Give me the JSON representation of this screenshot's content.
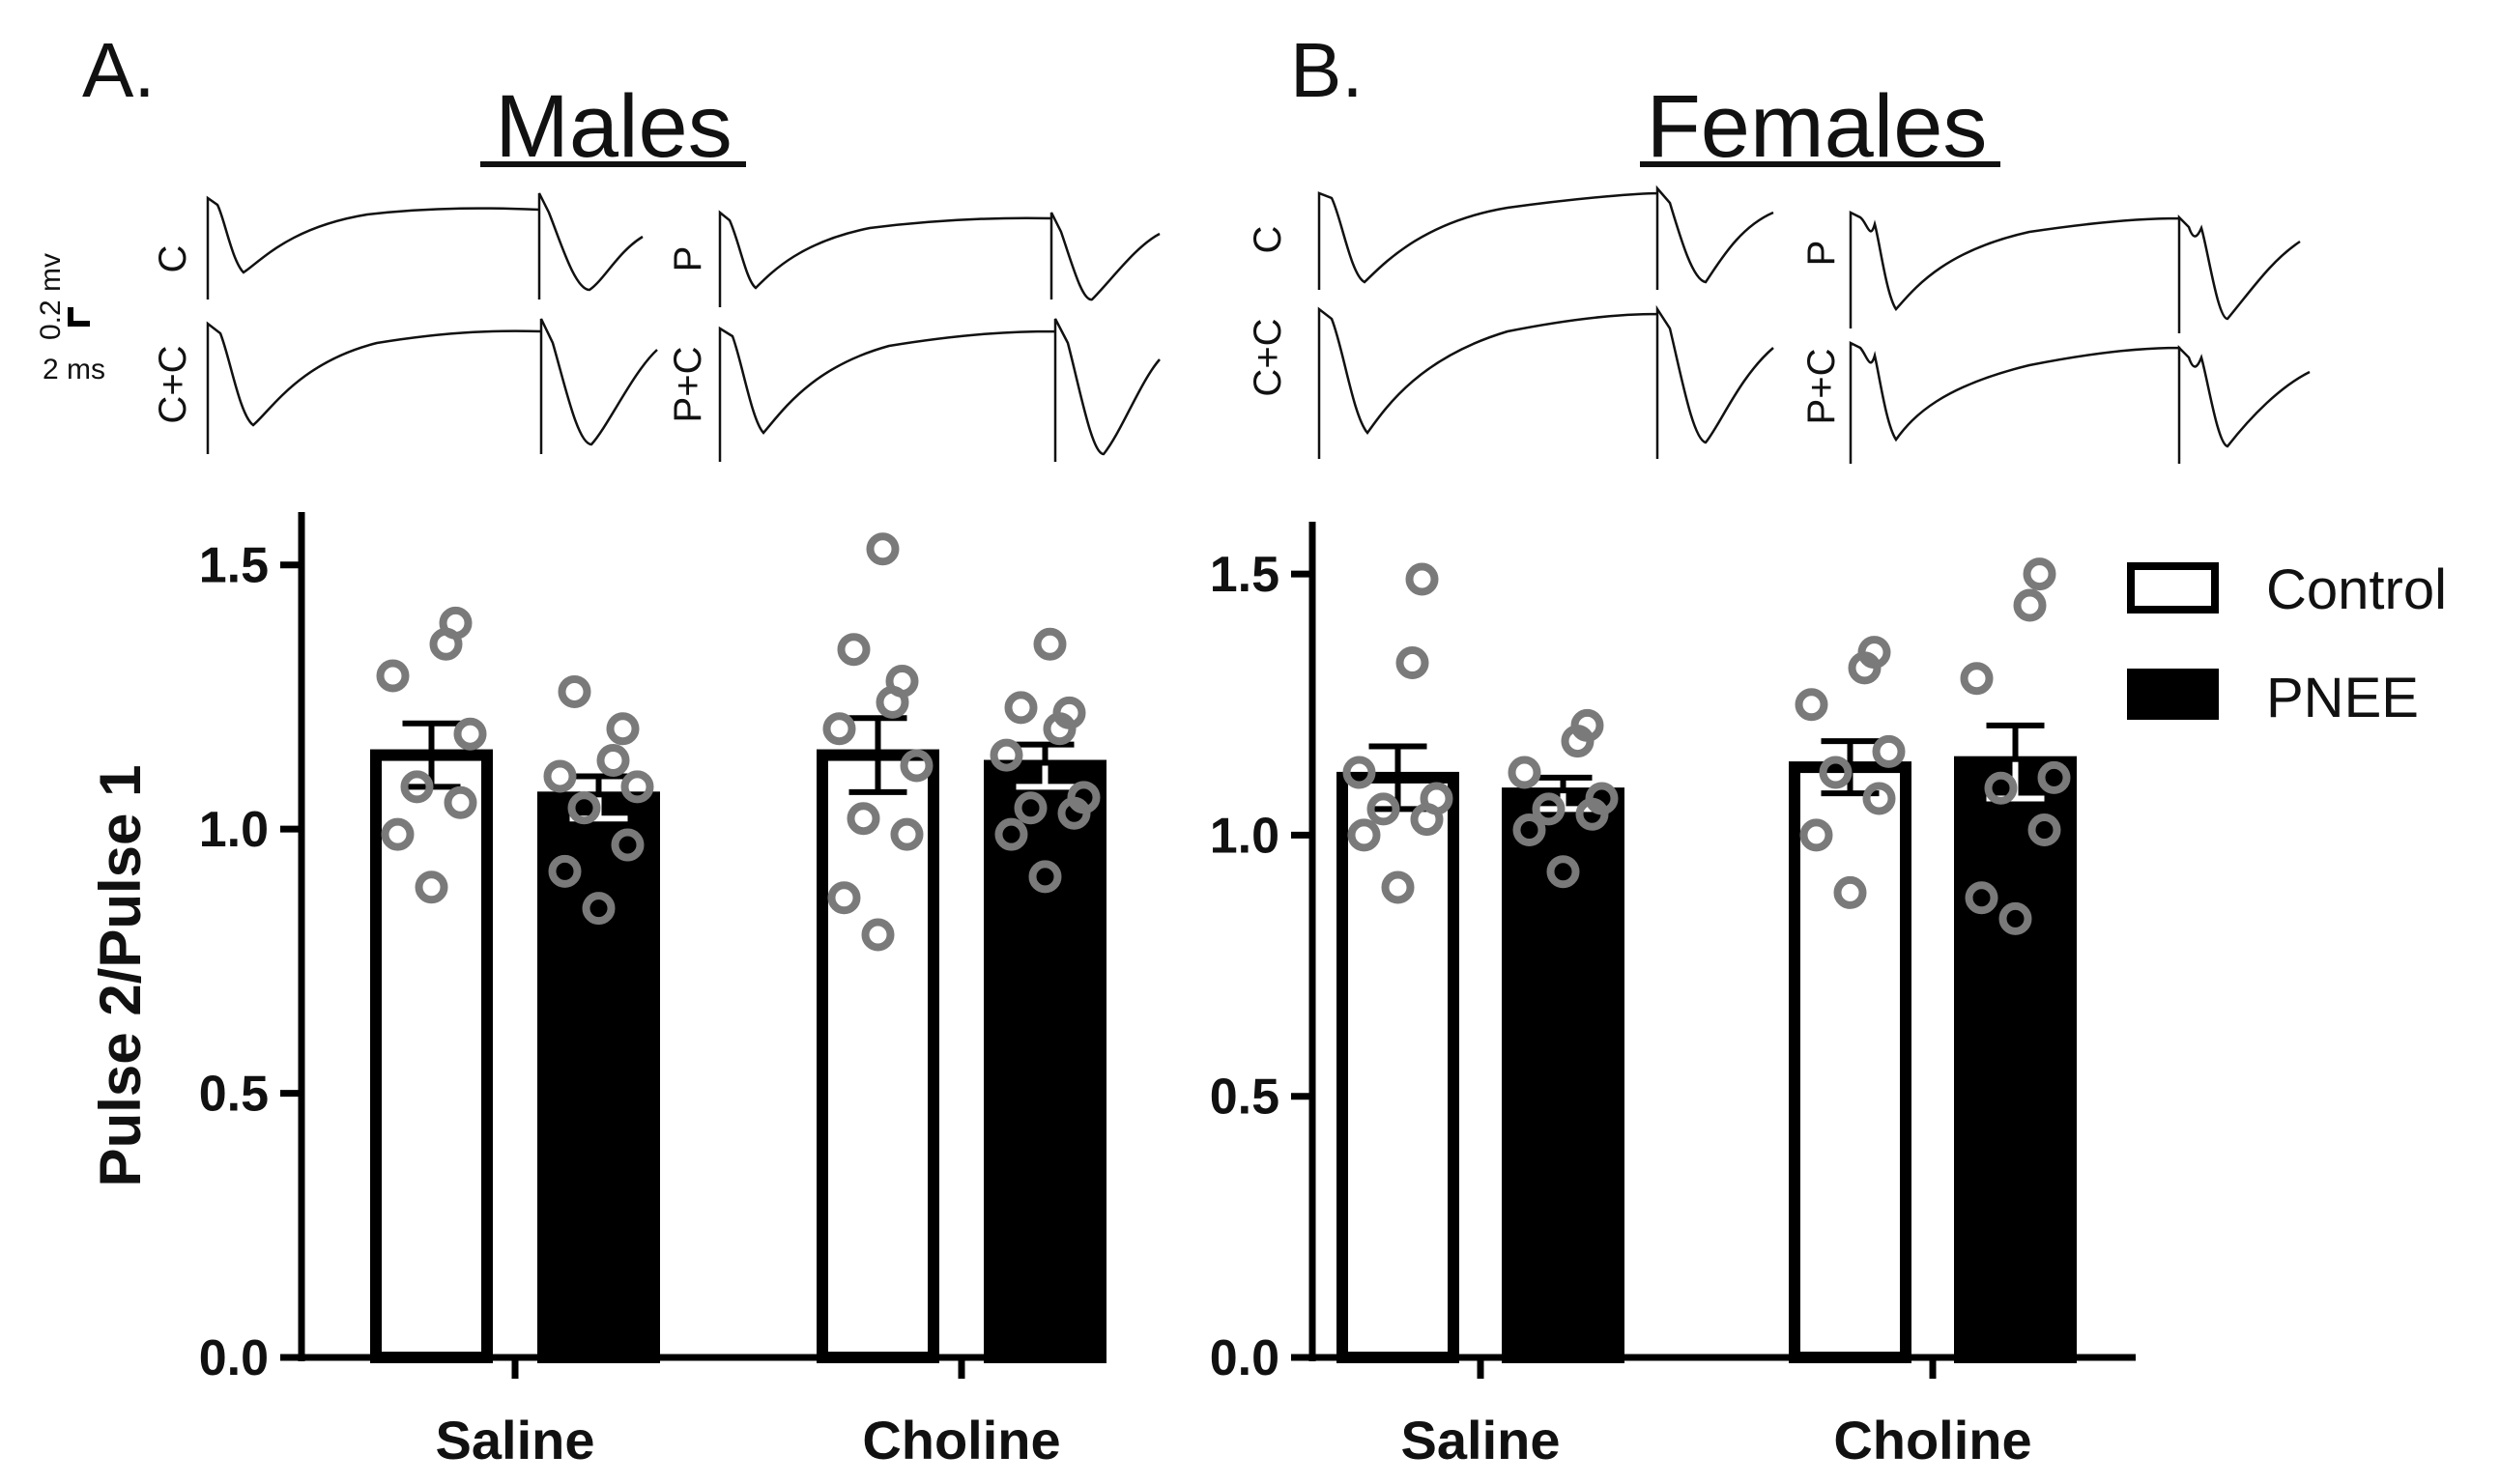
{
  "figure": {
    "panel_a_label": "A.",
    "panel_b_label": "B.",
    "males_title": "Males",
    "females_title": "Females",
    "scale_bar": {
      "voltage_label": "0.2 mv",
      "time_label": "2 ms"
    },
    "trace_labels": {
      "males": [
        "C",
        "P",
        "C+C",
        "P+C"
      ],
      "females": [
        "C",
        "P",
        "C+C",
        "P+C"
      ]
    }
  },
  "legend": {
    "items": [
      {
        "label": "Control",
        "fill": "#ffffff"
      },
      {
        "label": "PNEE",
        "fill": "#000000"
      }
    ]
  },
  "colors": {
    "bar_stroke": "#000000",
    "point": "#7a7a7a",
    "control": "#ffffff",
    "pnee": "#000000"
  },
  "chart_data": [
    {
      "type": "bar",
      "title": "Males",
      "ylabel": "Pulse 2/Pulse 1",
      "xlabel": "",
      "ylim": [
        0,
        1.6
      ],
      "yticks": [
        "0.0",
        "0.5",
        "1.0",
        "1.5"
      ],
      "categories": [
        "Saline",
        "Choline"
      ],
      "series": [
        {
          "name": "Control",
          "values": [
            1.14,
            1.14
          ],
          "sem": [
            0.06,
            0.07
          ],
          "points": [
            [
              0.89,
              0.99,
              1.05,
              1.08,
              1.18,
              1.29,
              1.35,
              1.39
            ],
            [
              0.8,
              0.87,
              0.99,
              1.02,
              1.12,
              1.19,
              1.24,
              1.28,
              1.34,
              1.53
            ]
          ]
        },
        {
          "name": "PNEE",
          "values": [
            1.06,
            1.12
          ],
          "sem": [
            0.04,
            0.04
          ],
          "points": [
            [
              0.85,
              0.92,
              0.97,
              1.04,
              1.08,
              1.1,
              1.13,
              1.19,
              1.26
            ],
            [
              0.91,
              0.99,
              1.03,
              1.04,
              1.06,
              1.14,
              1.19,
              1.22,
              1.23,
              1.35
            ]
          ]
        }
      ]
    },
    {
      "type": "bar",
      "title": "Females",
      "ylabel": "",
      "xlabel": "",
      "ylim": [
        0,
        1.6
      ],
      "yticks": [
        "0.0",
        "0.5",
        "1.0",
        "1.5"
      ],
      "categories": [
        "Saline",
        "Choline"
      ],
      "series": [
        {
          "name": "Control",
          "values": [
            1.11,
            1.13
          ],
          "sem": [
            0.06,
            0.05
          ],
          "points": [
            [
              0.9,
              1.0,
              1.03,
              1.05,
              1.07,
              1.12,
              1.33,
              1.49
            ],
            [
              0.89,
              1.0,
              1.07,
              1.12,
              1.16,
              1.25,
              1.32,
              1.35
            ]
          ]
        },
        {
          "name": "PNEE",
          "values": [
            1.08,
            1.14
          ],
          "sem": [
            0.03,
            0.07
          ],
          "points": [
            [
              0.93,
              1.01,
              1.04,
              1.05,
              1.07,
              1.12,
              1.18,
              1.21
            ],
            [
              0.84,
              0.88,
              1.01,
              1.09,
              1.11,
              1.3,
              1.44,
              1.5
            ]
          ]
        }
      ]
    }
  ]
}
